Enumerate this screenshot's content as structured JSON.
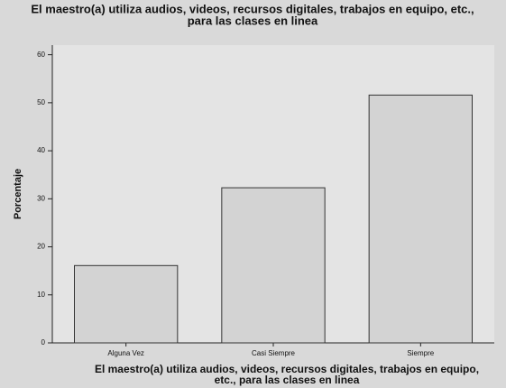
{
  "chart_data": {
    "type": "bar",
    "title": [
      "El maestro(a) utiliza audios, videos, recursos digitales, trabajos en equipo, etc.,",
      "para las clases en linea"
    ],
    "x_label": [
      "El maestro(a) utiliza audios, videos, recursos digitales, trabajos en equipo,",
      "etc., para las clases en linea"
    ],
    "y_label": "Porcentaje",
    "categories": [
      "Alguna Vez",
      "Casi Siempre",
      "Siempre"
    ],
    "values": [
      16.1,
      32.3,
      51.6
    ],
    "color": "#d3d3d3",
    "ylim": [
      0,
      62
    ],
    "yticks": [
      0,
      10,
      20,
      30,
      40,
      50,
      60
    ],
    "grid": false
  }
}
